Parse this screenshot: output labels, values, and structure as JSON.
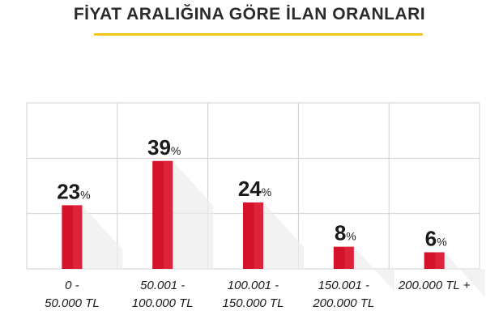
{
  "title": "FİYAT ARALIĞINA GÖRE İLAN ORANLARI",
  "colors": {
    "bar": "#d6112a",
    "bar_highlight": "#e83148",
    "bar_shadow": "#ececec",
    "grid": "#d0d0d0",
    "accent_underline": "#f5c518",
    "text": "#1a1a1a"
  },
  "chart_data": {
    "type": "bar",
    "title": "FİYAT ARALIĞINA GÖRE İLAN ORANLARI",
    "categories": [
      [
        "0 -",
        "50.000 TL"
      ],
      [
        "50.001 -",
        "100.000 TL"
      ],
      [
        "100.001 -",
        "150.000 TL"
      ],
      [
        "150.001 -",
        "200.000 TL"
      ],
      [
        "200.000 TL +"
      ]
    ],
    "values": [
      23,
      39,
      24,
      8,
      6
    ],
    "value_suffix": "%",
    "ylim": [
      0,
      60
    ],
    "grid": true,
    "xlabel": "",
    "ylabel": ""
  }
}
